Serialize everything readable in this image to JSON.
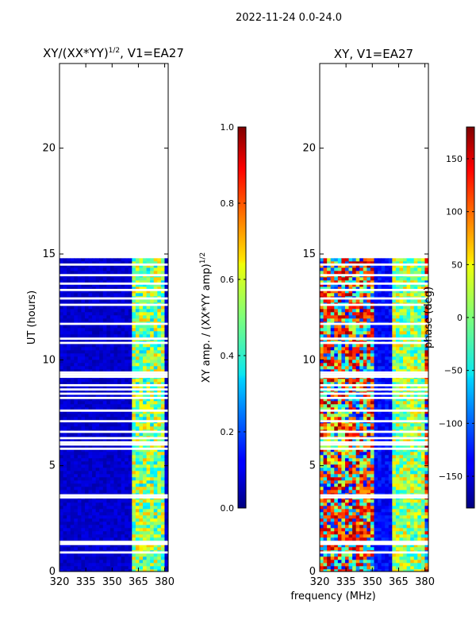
{
  "suptitle": "2022-11-24 0.0-24.0",
  "chart_data": [
    {
      "type": "heatmap",
      "title_main": "XY/(XX*YY)",
      "title_exp": "1/2",
      "title_tail": ", V1=EA27",
      "xlabel": "",
      "ylabel": "UT (hours)",
      "xlim": [
        320,
        382
      ],
      "ylim": [
        0,
        24
      ],
      "xticks": [
        320,
        335,
        350,
        365,
        380
      ],
      "yticks": [
        0,
        5,
        10,
        15,
        20
      ],
      "data_extent_hours": [
        0,
        14.8
      ],
      "colorbar": {
        "label_main": "XY amp. / (XX*YY amp)",
        "label_exp": "1/2",
        "range": [
          0.0,
          1.0
        ],
        "ticks": [
          "0.0",
          "0.2",
          "0.4",
          "0.6",
          "0.8",
          "1.0"
        ],
        "colormap": "jet"
      }
    },
    {
      "type": "heatmap",
      "title_main": "XY, V1=EA27",
      "xlabel": "frequency (MHz)",
      "ylabel": "",
      "xlim": [
        320,
        382
      ],
      "ylim": [
        0,
        24
      ],
      "xticks": [
        320,
        335,
        350,
        365,
        380
      ],
      "yticks": [
        0,
        5,
        10,
        15,
        20
      ],
      "data_extent_hours": [
        0,
        14.8
      ],
      "colorbar": {
        "label_main": "phase (deg)",
        "range": [
          -180,
          180
        ],
        "ticks": [
          "150",
          "100",
          "50",
          "0",
          "−50",
          "−100",
          "−150"
        ],
        "tick_values": [
          150,
          100,
          50,
          0,
          -50,
          -100,
          -150
        ],
        "colormap": "jet"
      }
    }
  ],
  "flag_gaps_hours": [
    0.9,
    1.3,
    1.4,
    3.5,
    3.6,
    5.8,
    6.0,
    6.1,
    6.3,
    6.6,
    7.1,
    7.6,
    8.2,
    8.4,
    8.6,
    8.8,
    9.2,
    9.3,
    9.4,
    10.8,
    11.0,
    11.7,
    12.6,
    12.9,
    13.3,
    13.6,
    14.0,
    14.5
  ]
}
